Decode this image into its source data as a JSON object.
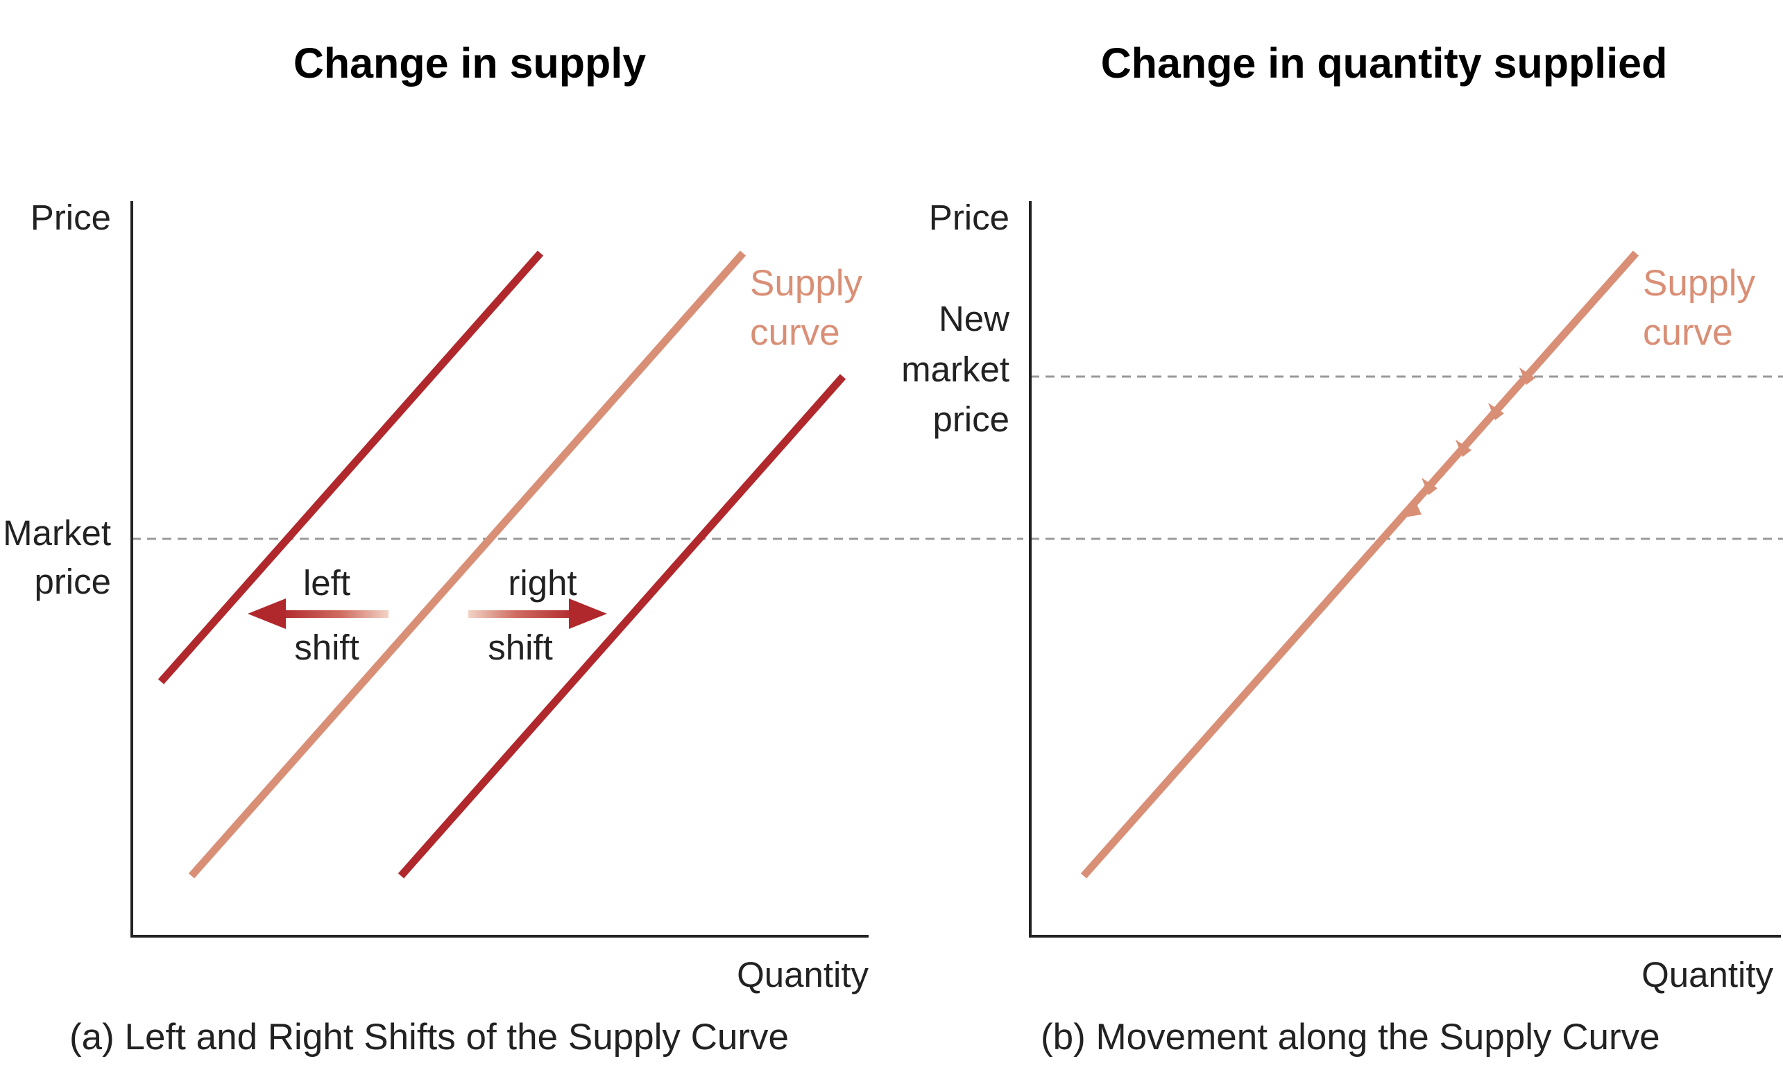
{
  "colors": {
    "supply_curve": "#d98f76",
    "shifted_curve": "#b0282c",
    "axis": "#222222",
    "guide_line": "#999999",
    "label_text": "#222222",
    "title_text": "#000000"
  },
  "panel_a": {
    "title": "Change in supply",
    "y_axis_label": "Price",
    "x_axis_label": "Quantity",
    "market_price_label": [
      "Market",
      "price"
    ],
    "supply_curve_label": [
      "Supply",
      "curve"
    ],
    "left_shift_label": [
      "left",
      "shift"
    ],
    "right_shift_label": [
      "right",
      "shift"
    ],
    "caption": "(a) Left and Right Shifts of the Supply Curve"
  },
  "panel_b": {
    "title": "Change in quantity supplied",
    "y_axis_label": "Price",
    "x_axis_label": "Quantity",
    "new_market_price_label": [
      "New",
      "market",
      "price"
    ],
    "supply_curve_label": [
      "Supply",
      "curve"
    ],
    "caption": "(b) Movement along the Supply Curve"
  }
}
